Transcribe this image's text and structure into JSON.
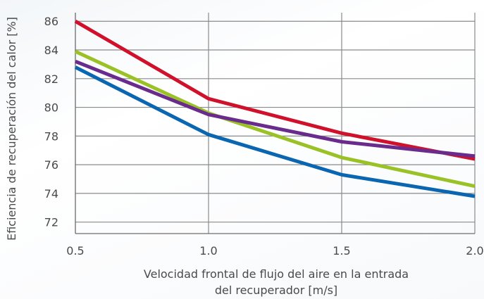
{
  "chart_data": {
    "type": "line",
    "x": [
      0.5,
      1.0,
      1.5,
      2.0
    ],
    "x_tick_labels": [
      "0.5",
      "1.0",
      "1.5",
      "2.0"
    ],
    "y_tick_labels": [
      "72",
      "74",
      "76",
      "78",
      "80",
      "82",
      "84",
      "86"
    ],
    "y_ticks": [
      72,
      74,
      76,
      78,
      80,
      82,
      84,
      86
    ],
    "xlim": [
      0.5,
      2.0
    ],
    "ylim": [
      71.2,
      86.6
    ],
    "grid": true,
    "xlabel_lines": [
      "Velocidad frontal de flujo del aire en la entrada",
      "del recuperador [m/s]"
    ],
    "ylabel": "Eficiencia de recuperación del calor [%]",
    "series": [
      {
        "color": "#d0112b",
        "values": [
          86.0,
          80.6,
          78.2,
          76.4
        ]
      },
      {
        "color": "#9ac125",
        "values": [
          83.9,
          79.6,
          76.5,
          74.5
        ]
      },
      {
        "color": "#6a2c8c",
        "values": [
          83.2,
          79.5,
          77.6,
          76.6
        ]
      },
      {
        "color": "#0a66b0",
        "values": [
          82.8,
          78.1,
          75.3,
          73.8
        ]
      }
    ]
  }
}
